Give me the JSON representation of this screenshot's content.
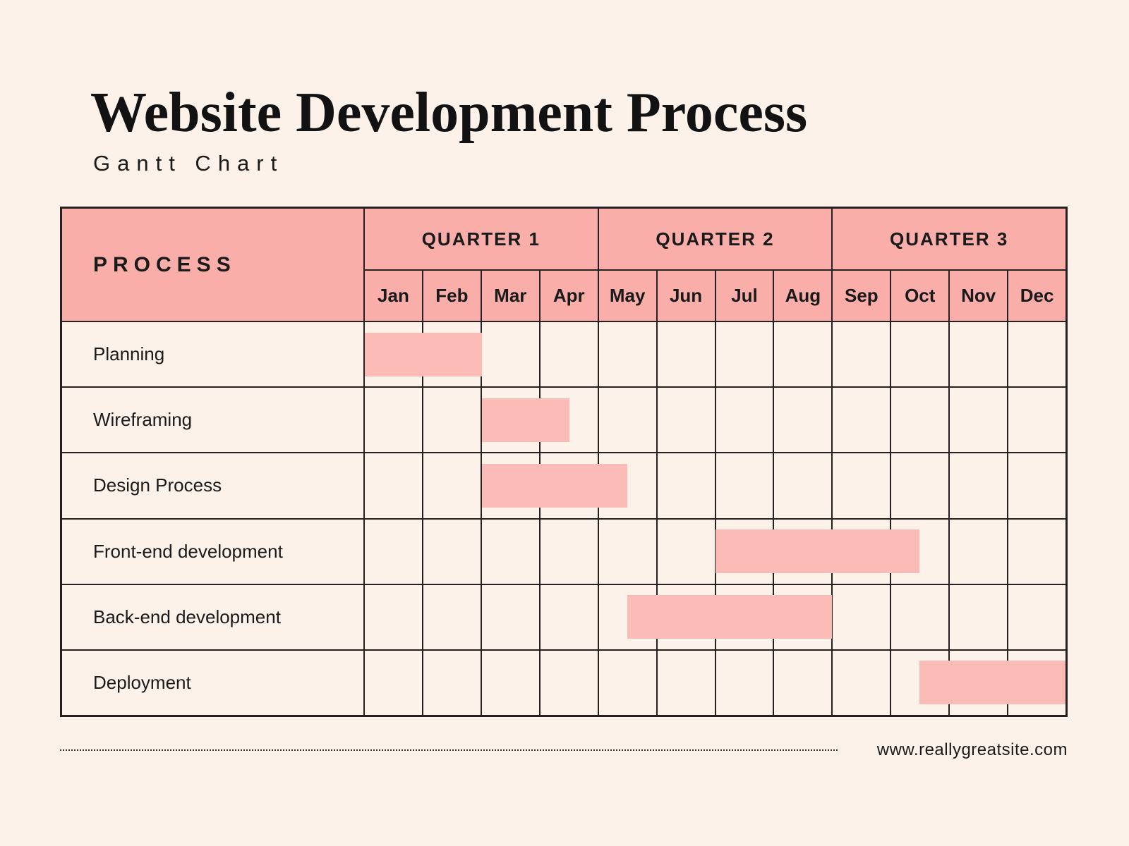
{
  "colors": {
    "page_background": "#FCF2EA",
    "table_header_pink": "#F9AEA9",
    "task_bar_pink": "#FBBBB6",
    "grid_line": "#262020",
    "text": "#1A1A1A"
  },
  "header": {
    "title": "Website Development Process",
    "subtitle": "Gantt Chart"
  },
  "table": {
    "process_header": "PROCESS",
    "total_months": 12,
    "quarters": [
      {
        "label": "QUARTER 1",
        "months": [
          "Jan",
          "Feb",
          "Mar",
          "Apr"
        ]
      },
      {
        "label": "QUARTER 2",
        "months": [
          "May",
          "Jun",
          "Jul",
          "Aug"
        ]
      },
      {
        "label": "QUARTER 3",
        "months": [
          "Sep",
          "Oct",
          "Nov",
          "Dec"
        ]
      }
    ],
    "rows": [
      {
        "label": "Planning",
        "bar_start_month": 0,
        "bar_duration_months": 2
      },
      {
        "label": "Wireframing",
        "bar_start_month": 2,
        "bar_duration_months": 1.5
      },
      {
        "label": "Design Process",
        "bar_start_month": 2,
        "bar_duration_months": 2.5
      },
      {
        "label": "Front-end development",
        "bar_start_month": 6,
        "bar_duration_months": 3.5
      },
      {
        "label": "Back-end development",
        "bar_start_month": 4.5,
        "bar_duration_months": 3.5
      },
      {
        "label": "Deployment",
        "bar_start_month": 9.5,
        "bar_duration_months": 2.5
      }
    ]
  },
  "footer": {
    "website": "www.reallygreatsite.com"
  },
  "chart_data": {
    "type": "bar",
    "subtype": "gantt",
    "title": "Website Development Process",
    "subtitle": "Gantt Chart",
    "x_labels": [
      "Jan",
      "Feb",
      "Mar",
      "Apr",
      "May",
      "Jun",
      "Jul",
      "Aug",
      "Sep",
      "Oct",
      "Nov",
      "Dec"
    ],
    "x_groups": [
      "QUARTER 1",
      "QUARTER 2",
      "QUARTER 3"
    ],
    "x_range_months": [
      0,
      12
    ],
    "grid": true,
    "tasks": [
      {
        "name": "Planning",
        "start_month_index": 0,
        "duration_months": 2,
        "start": "Jan",
        "end": "end of Feb"
      },
      {
        "name": "Wireframing",
        "start_month_index": 2,
        "duration_months": 1.5,
        "start": "Mar",
        "end": "mid-Apr"
      },
      {
        "name": "Design Process",
        "start_month_index": 2,
        "duration_months": 2.5,
        "start": "Mar",
        "end": "mid-May"
      },
      {
        "name": "Front-end development",
        "start_month_index": 6,
        "duration_months": 3.5,
        "start": "Jul",
        "end": "mid-Oct"
      },
      {
        "name": "Back-end development",
        "start_month_index": 4.5,
        "duration_months": 3.5,
        "start": "mid-May",
        "end": "end of Aug"
      },
      {
        "name": "Deployment",
        "start_month_index": 9.5,
        "duration_months": 2.5,
        "start": "mid-Oct",
        "end": "end of Dec"
      }
    ]
  }
}
